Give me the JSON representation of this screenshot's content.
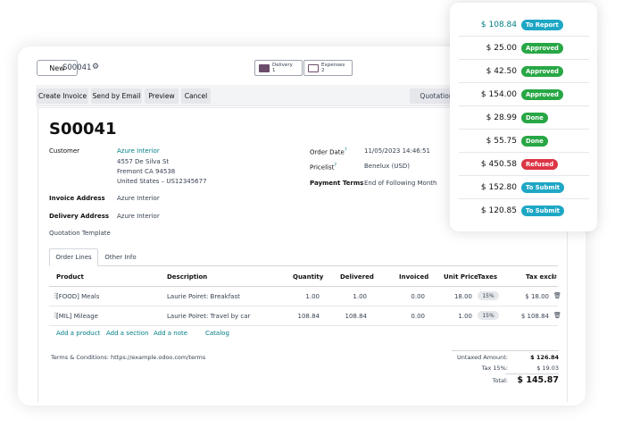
{
  "topbar": {
    "new_label": "New",
    "record_ref": "S00041"
  },
  "smart_buttons": [
    {
      "label": "Delivery",
      "count": "1"
    },
    {
      "label": "Expenses",
      "count": "2"
    }
  ],
  "actions": [
    "Create Invoice",
    "Send by Email",
    "Preview",
    "Cancel"
  ],
  "status_label": "Quotation",
  "form": {
    "title": "S00041",
    "customer_label": "Customer",
    "customer_name": "Azure Interior",
    "customer_street": "4557 De Silva St",
    "customer_city": "Fremont CA 94538",
    "customer_country": "United States – US12345677",
    "invoice_address_label": "Invoice Address",
    "invoice_address_value": "Azure Interior",
    "delivery_address_label": "Delivery Address",
    "delivery_address_value": "Azure Interior",
    "quotation_template_label": "Quotation Template",
    "order_date_label": "Order Date",
    "order_date_sup": "?",
    "order_date_value": "11/05/2023 14:46:51",
    "pricelist_label": "Pricelist",
    "pricelist_sup": "?",
    "pricelist_value": "Benelux (USD)",
    "payment_terms_label": "Payment Terms",
    "payment_terms_value": "End of Following Month"
  },
  "tabs": [
    "Order Lines",
    "Other Info"
  ],
  "table": {
    "headers": {
      "product": "Product",
      "description": "Description",
      "quantity": "Quantity",
      "delivered": "Delivered",
      "invoiced": "Invoiced",
      "unit_price": "Unit Price",
      "taxes": "Taxes",
      "tax_excl": "Tax excl."
    },
    "rows": [
      {
        "product": "[FOOD] Meals",
        "description": "Laurie Poiret: Breakfast",
        "quantity": "1.00",
        "delivered": "1.00",
        "invoiced": "0.00",
        "unit_price": "18.00",
        "tax": "15%",
        "subtotal": "$ 18.00"
      },
      {
        "product": "[MIL] Mileage",
        "description": "Laurie Poiret: Travel by car",
        "quantity": "108.84",
        "delivered": "108.84",
        "invoiced": "0.00",
        "unit_price": "1.00",
        "tax": "15%",
        "subtotal": "$ 108.84"
      }
    ],
    "add_links": [
      "Add a product",
      "Add a section",
      "Add a note",
      "Catalog"
    ]
  },
  "footer": {
    "terms": "Terms & Conditions: https://example.odoo.com/terms",
    "untaxed_label": "Untaxed Amount:",
    "untaxed_value": "$ 126.84",
    "tax_label": "Tax 15%:",
    "tax_value": "$ 19.03",
    "total_label": "Total:",
    "total_value": "$ 145.87"
  },
  "expense_panel": [
    {
      "amount": "$ 108.84",
      "status": "To Report",
      "color": "#1ea7c5"
    },
    {
      "amount": "$ 25.00",
      "status": "Approved",
      "color": "#28a745"
    },
    {
      "amount": "$ 42.50",
      "status": "Approved",
      "color": "#28a745"
    },
    {
      "amount": "$ 154.00",
      "status": "Approved",
      "color": "#28a745"
    },
    {
      "amount": "$ 28.99",
      "status": "Done",
      "color": "#28a745"
    },
    {
      "amount": "$ 55.75",
      "status": "Done",
      "color": "#28a745"
    },
    {
      "amount": "$ 450.58",
      "status": "Refused",
      "color": "#dc3545"
    },
    {
      "amount": "$ 152.80",
      "status": "To Submit",
      "color": "#1ea7c5"
    },
    {
      "amount": "$ 120.85",
      "status": "To Submit",
      "color": "#1ea7c5"
    }
  ],
  "colors": {
    "link": "#017e84",
    "brand": "#714b67"
  }
}
